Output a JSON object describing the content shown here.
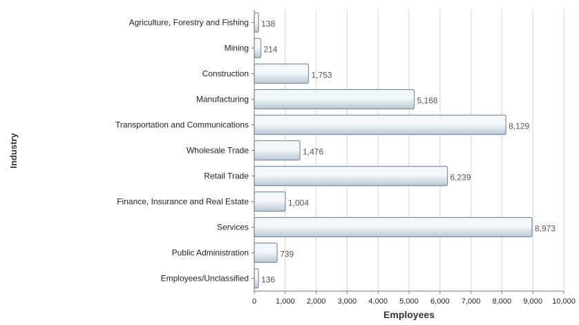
{
  "chart_data": {
    "type": "bar",
    "orientation": "horizontal",
    "title": "",
    "xlabel": "Employees",
    "ylabel": "Industry",
    "categories": [
      "Agriculture, Forestry and Fishing",
      "Mining",
      "Construction",
      "Manufacturing",
      "Transportation and Communications",
      "Wholesale Trade",
      "Retail Trade",
      "Finance, Insurance and Real Estate",
      "Services",
      "Public Administration",
      "Employees/Unclassified"
    ],
    "values": [
      138,
      214,
      1753,
      5168,
      8129,
      1476,
      6239,
      1004,
      8973,
      739,
      136
    ],
    "value_labels": [
      "138",
      "214",
      "1,753",
      "5,168",
      "8,129",
      "1,476",
      "6,239",
      "1,004",
      "8,973",
      "739",
      "136"
    ],
    "xlim": [
      0,
      10000
    ],
    "xticks": [
      0,
      1000,
      2000,
      3000,
      4000,
      5000,
      6000,
      7000,
      8000,
      9000,
      10000
    ],
    "xtick_labels": [
      "0",
      "1,000",
      "2,000",
      "3,000",
      "4,000",
      "5,000",
      "6,000",
      "7,000",
      "8,000",
      "9,000",
      "10,000"
    ],
    "grid": "vertical",
    "legend": "none",
    "colors": {
      "bar_light": "#f4f7fa",
      "bar_dark": "#b9c7d4",
      "bar_stroke": "#7f8f9f",
      "grid": "#d4d4d4",
      "axis": "#777777",
      "text": "#222222",
      "value_text": "#555555"
    }
  }
}
